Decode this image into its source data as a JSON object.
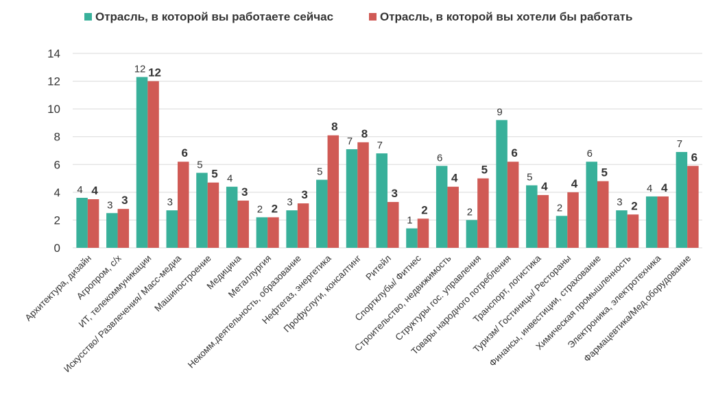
{
  "colors": {
    "current": "#38b09a",
    "desired": "#d05a55",
    "grid": "#d9d9d9"
  },
  "legend": {
    "current": "Отрасль, в которой вы работаете сейчас",
    "desired": "Отрасль, в которой вы хотели бы работать"
  },
  "chart_data": {
    "type": "bar",
    "legend_position": "top",
    "grid": true,
    "ylim": [
      0,
      14
    ],
    "yticks": [
      0,
      2,
      4,
      6,
      8,
      10,
      12,
      14
    ],
    "categories": [
      "Архитектура, дизайн",
      "Агропром, с/х",
      "ИТ, телекоммуникации",
      "Искусство/ Развлечения/ Масс-медиа",
      "Машиностроение",
      "Медицина",
      "Металлургия",
      "Некомм.деятельность, образование",
      "Нефтегаз, энергетика",
      "Профуслуги, консалтинг",
      "Ритейл",
      "Спортклубы/ Фитнес",
      "Строительство, недвижимость",
      "Структуры гос. управления",
      "Товары народного потребления",
      "Транспорт, логистика",
      "Туризм/ Гостиницы/ Рестораны",
      "Финансы, инвестиции, страхование",
      "Химическая промышленность",
      "Электроника, электротехника",
      "Фармацевтика/Мед.оборудование"
    ],
    "series": [
      {
        "name": "Отрасль, в которой вы работаете сейчас",
        "values": [
          3.6,
          2.5,
          12.3,
          2.7,
          5.4,
          4.4,
          2.2,
          2.7,
          4.9,
          7.1,
          6.8,
          1.4,
          5.9,
          2.0,
          9.2,
          4.5,
          2.3,
          6.2,
          2.7,
          3.7,
          6.9
        ],
        "labels": [
          "4",
          "3",
          "12",
          "3",
          "5",
          "4",
          "2",
          "3",
          "5",
          "7",
          "7",
          "1",
          "6",
          "2",
          "9",
          "5",
          "2",
          "6",
          "3",
          "4",
          "7"
        ]
      },
      {
        "name": "Отрасль, в которой вы хотели бы работать",
        "values": [
          3.5,
          2.8,
          12.0,
          6.2,
          4.7,
          3.4,
          2.2,
          3.2,
          8.1,
          7.6,
          3.3,
          2.1,
          4.4,
          5.0,
          6.2,
          3.8,
          4.0,
          4.8,
          2.4,
          3.7,
          5.9
        ],
        "labels": [
          "4",
          "3",
          "12",
          "6",
          "5",
          "3",
          "2",
          "3",
          "8",
          "8",
          "3",
          "2",
          "4",
          "5",
          "6",
          "4",
          "4",
          "5",
          "2",
          "4",
          "6"
        ]
      }
    ]
  }
}
